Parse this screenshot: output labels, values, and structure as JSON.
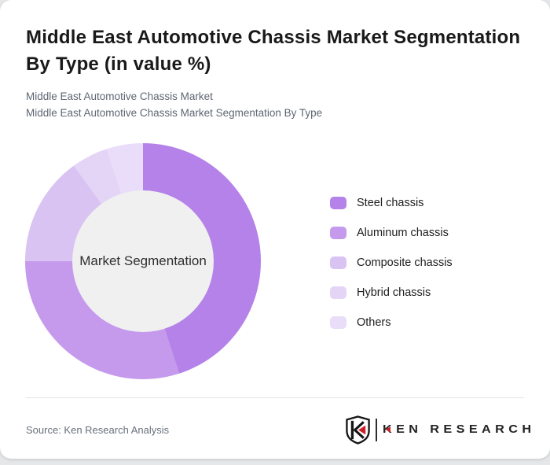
{
  "header": {
    "title": "Middle East Automotive Chassis Market Segmentation By Type (in value %)",
    "subtitle_line1": "Middle East Automotive Chassis Market",
    "subtitle_line2": "Middle East Automotive Chassis Market Segmentation By Type"
  },
  "chart_data": {
    "type": "pie",
    "donut": true,
    "title": "Middle East Automotive Chassis Market Segmentation By Type (in value %)",
    "unit": "value %",
    "center_label": "Market Segmentation",
    "legend_position": "right",
    "start_angle_deg": 0,
    "inner_hole_color": "#f0f0f0",
    "segments": [
      {
        "label": "Steel chassis",
        "value": 45,
        "color": "#b482e8"
      },
      {
        "label": "Aluminum chassis",
        "value": 30,
        "color": "#c59aec"
      },
      {
        "label": "Composite chassis",
        "value": 15,
        "color": "#d9c3f2"
      },
      {
        "label": "Hybrid chassis",
        "value": 5,
        "color": "#e4d5f7"
      },
      {
        "label": "Others",
        "value": 5,
        "color": "#e9ddf9"
      }
    ]
  },
  "footer": {
    "source": "Source: Ken Research Analysis",
    "brand": "KEN RESEARCH"
  },
  "colors": {
    "brand_red": "#cb2026",
    "card_bg": "#ffffff",
    "page_bg": "#e6e7e9"
  }
}
